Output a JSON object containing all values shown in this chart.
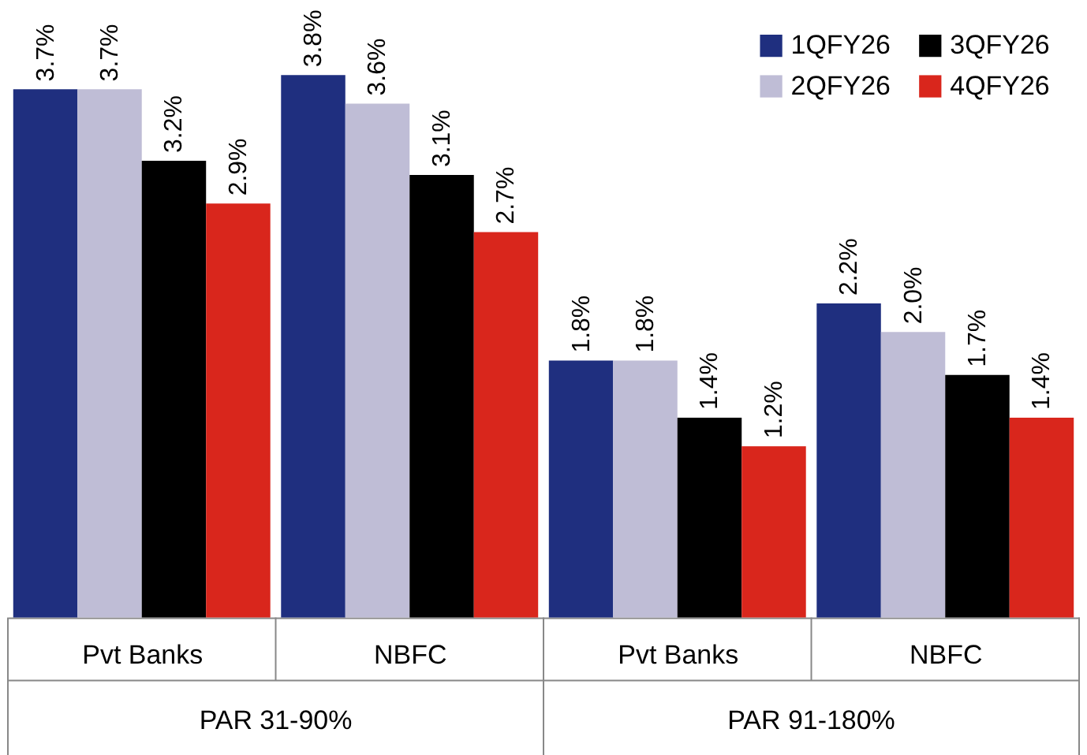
{
  "chart_data": {
    "type": "bar",
    "categories": [
      "Pvt Banks",
      "NBFC",
      "Pvt Banks",
      "NBFC"
    ],
    "series": [
      {
        "name": "1QFY26",
        "color": "#1f2f7f",
        "values": [
          3.7,
          3.8,
          1.8,
          2.2
        ],
        "value_labels": [
          "3.7%",
          "3.8%",
          "1.8%",
          "2.2%"
        ]
      },
      {
        "name": "2QFY26",
        "color": "#bfbdd6",
        "values": [
          3.7,
          3.6,
          1.8,
          2.0
        ],
        "value_labels": [
          "3.7%",
          "3.6%",
          "1.8%",
          "2.0%"
        ]
      },
      {
        "name": "3QFY26",
        "color": "#000000",
        "values": [
          3.2,
          3.1,
          1.4,
          1.7
        ],
        "value_labels": [
          "3.2%",
          "3.1%",
          "1.4%",
          "1.7%"
        ]
      },
      {
        "name": "4QFY26",
        "color": "#d9261c",
        "values": [
          2.9,
          2.7,
          1.2,
          1.4
        ],
        "value_labels": [
          "2.9%",
          "2.7%",
          "1.2%",
          "1.4%"
        ]
      }
    ],
    "annotations": [
      "PAR 31-90%",
      "PAR 91-180%"
    ],
    "ylim": [
      0,
      4.3
    ],
    "tick_labels": "x",
    "grid": false,
    "legend": "top right"
  }
}
